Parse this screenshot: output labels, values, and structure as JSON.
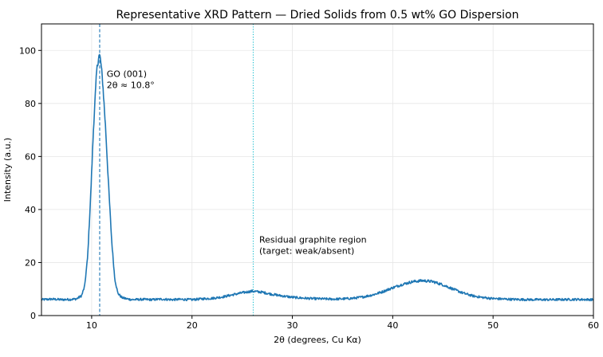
{
  "chart_data": {
    "type": "line",
    "title": "Representative XRD Pattern — Dried Solids from 0.5 wt% GO Dispersion",
    "xlabel": "2θ (degrees, Cu Kα)",
    "ylabel": "Intensity (a.u.)",
    "xlim": [
      5,
      60
    ],
    "ylim": [
      0,
      110
    ],
    "grid": true,
    "x_ticks": [
      10,
      20,
      30,
      40,
      50,
      60
    ],
    "y_ticks": [
      0,
      20,
      40,
      60,
      80,
      100
    ],
    "series": [
      {
        "color": "#1f77b4",
        "x": [
          5,
          6,
          7,
          8,
          8.5,
          9,
          9.3,
          9.6,
          9.9,
          10.2,
          10.5,
          10.7,
          10.8,
          10.9,
          11.1,
          11.4,
          11.7,
          12.0,
          12.3,
          12.6,
          13,
          13.5,
          14,
          15,
          16,
          17,
          18,
          19,
          20,
          21,
          22,
          23,
          24,
          25,
          26,
          27,
          28,
          29,
          30,
          31,
          32,
          33,
          34,
          35,
          36,
          37,
          38,
          39,
          40,
          41,
          42,
          43,
          44,
          45,
          46,
          47,
          48,
          49,
          50,
          52,
          54,
          56,
          58,
          60
        ],
        "values": [
          6,
          6.2,
          6,
          6.1,
          6.3,
          7.5,
          11,
          22,
          45,
          72,
          92,
          98,
          98,
          96,
          88,
          70,
          48,
          28,
          14,
          8.5,
          6.8,
          6.3,
          6,
          6.1,
          6,
          6.2,
          6,
          6.1,
          6,
          6.3,
          6.5,
          7,
          7.8,
          8.6,
          9.2,
          8.8,
          8,
          7.4,
          6.9,
          6.6,
          6.4,
          6.3,
          6.2,
          6.3,
          6.5,
          7,
          7.8,
          9,
          10.5,
          11.8,
          12.8,
          13.2,
          12.8,
          11.6,
          10,
          8.5,
          7.4,
          6.8,
          6.4,
          6.1,
          6,
          6,
          6.1,
          6
        ]
      }
    ],
    "vlines": [
      {
        "x": 10.8,
        "style": "dashed",
        "color": "#1f77b4"
      },
      {
        "x": 26.1,
        "style": "dotted",
        "color": "#17becf"
      }
    ],
    "annotations": [
      {
        "lines": [
          "GO (001)",
          "2θ ≈ 10.8°"
        ],
        "x": 11.5,
        "y": 90
      },
      {
        "lines": [
          "Residual graphite region",
          "(target: weak/absent)"
        ],
        "x": 26.7,
        "y": 27.5
      }
    ]
  }
}
